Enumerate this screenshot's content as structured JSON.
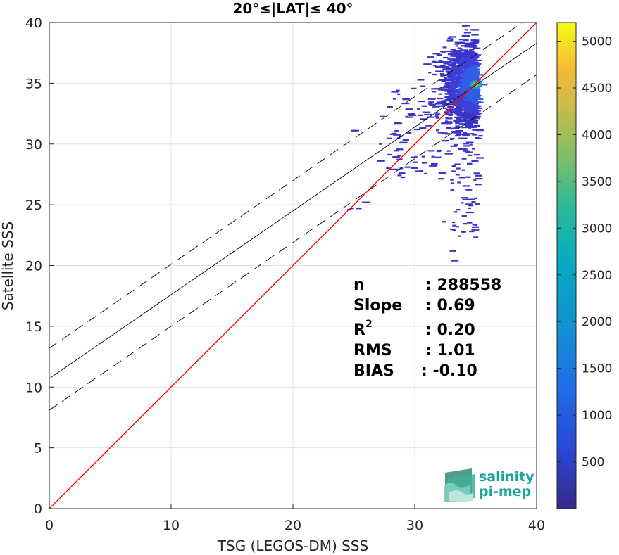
{
  "chart_data": {
    "type": "heatmap",
    "title": "20°≤|LAT|≤ 40°",
    "xlabel": "TSG (LEGOS-DM) SSS",
    "ylabel": "Satellite SSS",
    "xlim": [
      0,
      40
    ],
    "ylim": [
      0,
      40
    ],
    "xticks": [
      "0",
      "10",
      "20",
      "30",
      "40"
    ],
    "yticks": [
      "0",
      "5",
      "10",
      "15",
      "20",
      "25",
      "30",
      "35",
      "40"
    ],
    "grid": true,
    "colorbar": {
      "range": [
        0,
        5200
      ],
      "ticks": [
        "500",
        "1000",
        "1500",
        "2000",
        "2500",
        "3000",
        "3500",
        "4000",
        "4500",
        "5000"
      ],
      "colormap": "parula"
    },
    "lines": {
      "one_to_one": {
        "slope": 1,
        "intercept": 0,
        "color": "#ff0000"
      },
      "regression": {
        "slope": 0.69,
        "intercept": 10.7,
        "color": "#000000"
      },
      "upper_bound": {
        "slope": 0.69,
        "intercept": 13.2,
        "style": "dashed"
      },
      "lower_bound": {
        "slope": 0.69,
        "intercept": 8.1,
        "style": "dashed"
      }
    },
    "density_core": {
      "x": 35.0,
      "y": 34.9,
      "max_count": 5200
    },
    "stats": [
      {
        "label": "n",
        "value": ": 288558"
      },
      {
        "label": "Slope",
        "value": ": 0.69"
      },
      {
        "label": "R",
        "sup": "2",
        "value": ": 0.20"
      },
      {
        "label": "RMS",
        "value": ": 1.01"
      },
      {
        "label": "BIAS",
        "value": ": -0.10"
      }
    ]
  },
  "logo": {
    "line1": "salinity",
    "line2": "pi-mep"
  }
}
